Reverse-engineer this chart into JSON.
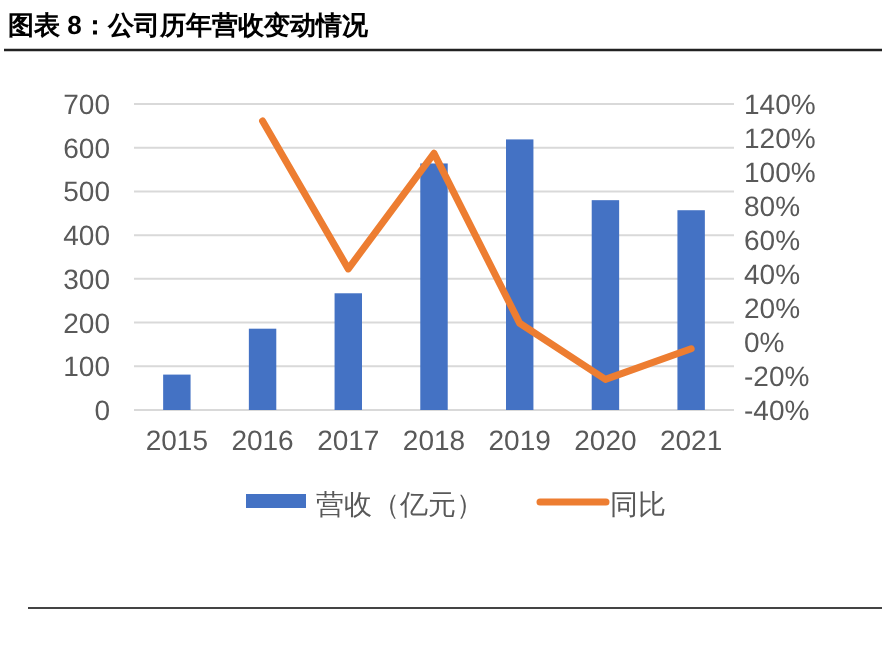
{
  "chart_data": {
    "type": "bar",
    "title": "图表 8：公司历年营收变动情况",
    "categories": [
      "2015",
      "2016",
      "2017",
      "2018",
      "2019",
      "2020",
      "2021"
    ],
    "series": [
      {
        "name": "营收（亿元）",
        "color": "#4472c4",
        "values": [
          81,
          186,
          267,
          564,
          619,
          480,
          457
        ]
      },
      {
        "name": "同比",
        "color": "#ed7d31",
        "type": "line",
        "axis": "y2",
        "values": [
          null,
          130,
          43,
          111,
          11,
          -22,
          -4
        ]
      }
    ],
    "ylim": [
      0,
      700
    ],
    "yticks": [
      0,
      100,
      200,
      300,
      400,
      500,
      600,
      700
    ],
    "y2lim": [
      -40,
      140
    ],
    "y2ticks": [
      {
        "value": -40,
        "label": "-40%"
      },
      {
        "value": -20,
        "label": "-20%"
      },
      {
        "value": 0,
        "label": "0%"
      },
      {
        "value": 20,
        "label": "20%"
      },
      {
        "value": 40,
        "label": "40%"
      },
      {
        "value": 60,
        "label": "60%"
      },
      {
        "value": 80,
        "label": "80%"
      },
      {
        "value": 100,
        "label": "100%"
      },
      {
        "value": 120,
        "label": "120%"
      },
      {
        "value": 140,
        "label": "140%"
      }
    ],
    "grid": "y",
    "legend": "bottom"
  }
}
